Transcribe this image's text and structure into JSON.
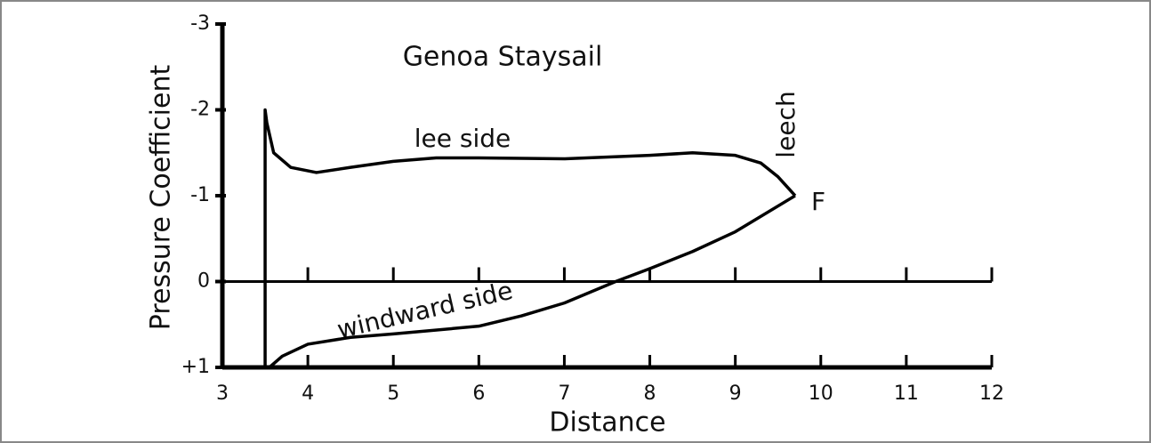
{
  "chart_data": {
    "type": "line",
    "title": "Genoa Staysail",
    "xlabel": "Distance",
    "ylabel": "Pressure Coefficient",
    "annotations": [
      "lee side",
      "windward side",
      "leech",
      "F"
    ],
    "xlim": [
      3,
      12
    ],
    "xticks": [
      3,
      4,
      5,
      6,
      7,
      8,
      9,
      10,
      11,
      12
    ],
    "ylim": [
      -3,
      1
    ],
    "yticks": [
      -3,
      -2,
      -1,
      0,
      {
        "value": 1,
        "label": "+1"
      }
    ],
    "series": [
      {
        "name": "lee side",
        "color": "#000000",
        "x": [
          3.5,
          3.5,
          3.52,
          3.6,
          3.8,
          4.1,
          4.5,
          5,
          5.5,
          6,
          7,
          8,
          8.5,
          9,
          9.3,
          9.5,
          9.7
        ],
        "values": [
          1,
          -2,
          -1.85,
          -1.5,
          -1.33,
          -1.27,
          -1.33,
          -1.4,
          -1.44,
          -1.44,
          -1.43,
          -1.47,
          -1.5,
          -1.47,
          -1.38,
          -1.22,
          -1
        ]
      },
      {
        "name": "windward side",
        "color": "#000000",
        "x": [
          3.55,
          3.7,
          4,
          4.5,
          5,
          6,
          6.5,
          7,
          7.6,
          8,
          8.5,
          9,
          9.7
        ],
        "values": [
          1,
          0.87,
          0.73,
          0.65,
          0.61,
          0.52,
          0.4,
          0.25,
          0,
          -0.15,
          -0.35,
          -0.58,
          -1
        ]
      }
    ]
  }
}
